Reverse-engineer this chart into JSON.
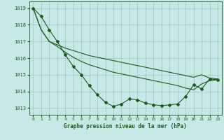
{
  "title": "Graphe pression niveau de la mer (hPa)",
  "background_color": "#c8e8e8",
  "grid_color": "#a8cece",
  "line_color": "#1a5c1a",
  "xlim": [
    -0.5,
    23.5
  ],
  "ylim": [
    1012.6,
    1019.4
  ],
  "yticks": [
    1013,
    1014,
    1015,
    1016,
    1017,
    1018,
    1019
  ],
  "xticks": [
    0,
    1,
    2,
    3,
    4,
    5,
    6,
    7,
    8,
    9,
    10,
    11,
    12,
    13,
    14,
    15,
    16,
    17,
    18,
    19,
    20,
    21,
    22,
    23
  ],
  "series_bottom": [
    1019.0,
    1018.5,
    1017.7,
    1017.0,
    1016.2,
    1015.5,
    1015.0,
    1014.35,
    1013.8,
    1013.35,
    1013.1,
    1013.25,
    1013.55,
    1013.5,
    1013.3,
    1013.2,
    1013.15,
    1013.2,
    1013.25,
    1013.7,
    1014.4,
    1014.15,
    1014.75,
    1014.7
  ],
  "series_mid": [
    1019.0,
    1017.7,
    1017.0,
    1016.7,
    1016.35,
    1016.05,
    1015.8,
    1015.6,
    1015.45,
    1015.3,
    1015.15,
    1015.05,
    1014.95,
    1014.85,
    1014.75,
    1014.65,
    1014.55,
    1014.45,
    1014.35,
    1014.2,
    1014.1,
    1014.45,
    1014.65,
    1014.7
  ],
  "series_top": [
    1019.0,
    1017.7,
    1017.0,
    1016.8,
    1016.6,
    1016.45,
    1016.3,
    1016.15,
    1016.05,
    1015.95,
    1015.85,
    1015.75,
    1015.65,
    1015.55,
    1015.45,
    1015.35,
    1015.25,
    1015.15,
    1015.05,
    1014.95,
    1014.85,
    1015.0,
    1014.8,
    1014.75
  ]
}
